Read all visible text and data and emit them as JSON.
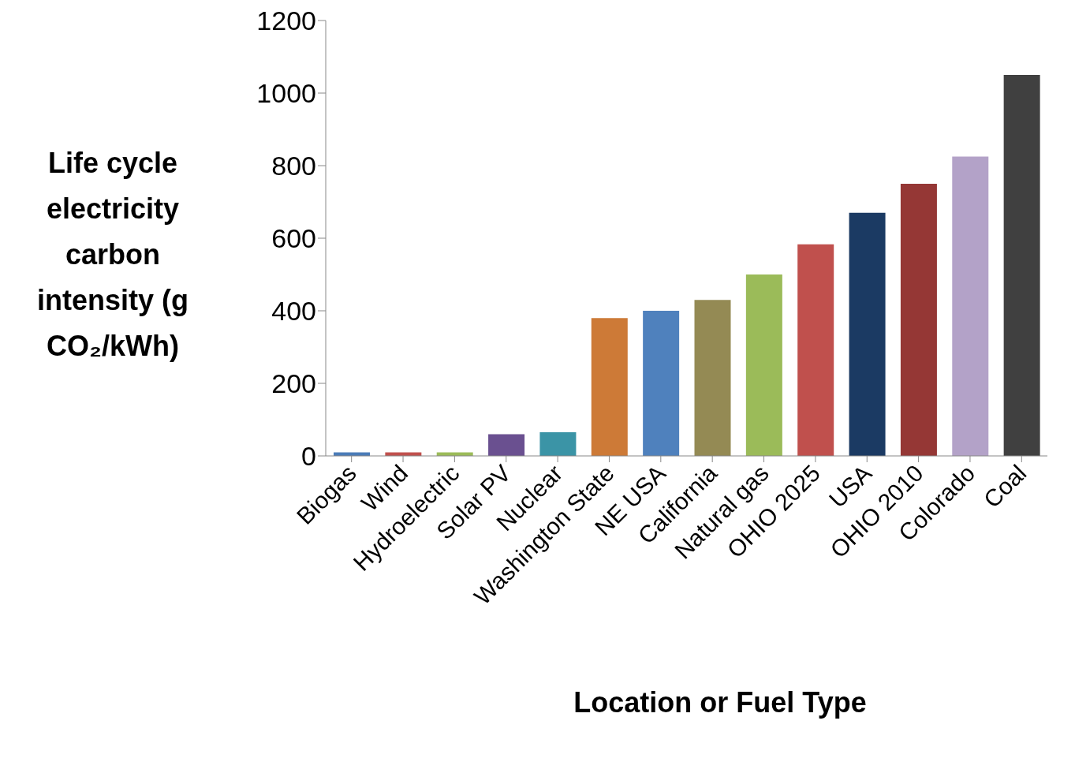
{
  "chart_data": {
    "type": "bar",
    "categories": [
      "Biogas",
      "Wind",
      "Hydroelectric",
      "Solar PV",
      "Nuclear",
      "Washington State",
      "NE USA",
      "California",
      "Natural gas",
      "OHIO 2025",
      "USA",
      "OHIO 2010",
      "Colorado",
      "Coal"
    ],
    "values": [
      10,
      10,
      10,
      60,
      65,
      380,
      400,
      430,
      500,
      583,
      670,
      750,
      825,
      1050
    ],
    "colors": [
      "#4a7bb7",
      "#c0504d",
      "#9bbb59",
      "#6a5090",
      "#3b94a6",
      "#cd7a37",
      "#4f81bd",
      "#948a54",
      "#9bbb59",
      "#c0504d",
      "#1b3a63",
      "#953735",
      "#b3a2c8",
      "#404040"
    ],
    "ylabel": "Life cycle electricity carbon intensity (g CO₂/kWh)",
    "xlabel": "Location or Fuel Type",
    "ylim": [
      0,
      1200
    ],
    "yticks": [
      0,
      200,
      400,
      600,
      800,
      1000,
      1200
    ],
    "grid": false,
    "legend": false
  }
}
